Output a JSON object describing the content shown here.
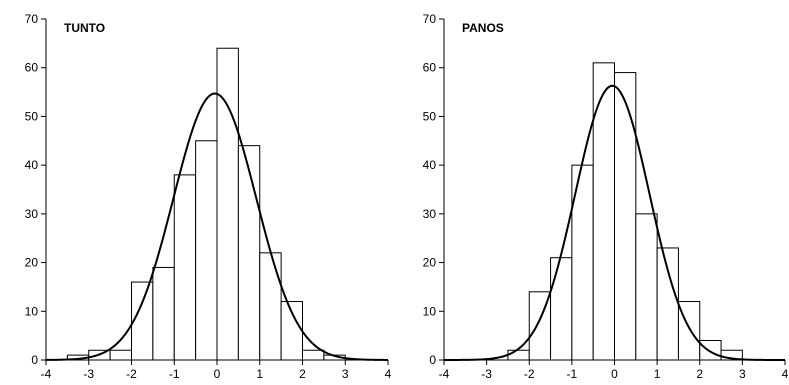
{
  "chart_data": [
    {
      "type": "bar",
      "title": "TUNTO",
      "xlabel": "",
      "ylabel": "",
      "xlim": [
        -4,
        4
      ],
      "ylim": [
        0,
        70
      ],
      "xticks": [
        "-4",
        "-3",
        "-2",
        "-1",
        "0",
        "1",
        "2",
        "3",
        "4"
      ],
      "yticks": [
        "0",
        "10",
        "20",
        "30",
        "40",
        "50",
        "60",
        "70"
      ],
      "bin_width": 0.5,
      "bins": [
        {
          "x0": -3.5,
          "x1": -3.0,
          "value": 1
        },
        {
          "x0": -3.0,
          "x1": -2.5,
          "value": 2
        },
        {
          "x0": -2.5,
          "x1": -2.0,
          "value": 2
        },
        {
          "x0": -2.0,
          "x1": -1.5,
          "value": 16
        },
        {
          "x0": -1.5,
          "x1": -1.0,
          "value": 19
        },
        {
          "x0": -1.0,
          "x1": -0.5,
          "value": 38
        },
        {
          "x0": -0.5,
          "x1": 0.0,
          "value": 45
        },
        {
          "x0": 0.0,
          "x1": 0.5,
          "value": 64
        },
        {
          "x0": 0.5,
          "x1": 1.0,
          "value": 44
        },
        {
          "x0": 1.0,
          "x1": 1.5,
          "value": 22
        },
        {
          "x0": 1.5,
          "x1": 2.0,
          "value": 12
        },
        {
          "x0": 2.0,
          "x1": 2.5,
          "value": 2
        },
        {
          "x0": 2.5,
          "x1": 3.0,
          "value": 1
        }
      ],
      "curve": {
        "type": "normal",
        "mean": -0.05,
        "sd": 0.97,
        "peak": 54.7
      }
    },
    {
      "type": "bar",
      "title": "PANOS",
      "xlabel": "",
      "ylabel": "",
      "xlim": [
        -4,
        4
      ],
      "ylim": [
        0,
        70
      ],
      "xticks": [
        "-4",
        "-3",
        "-2",
        "-1",
        "0",
        "1",
        "2",
        "3",
        "4"
      ],
      "yticks": [
        "0",
        "10",
        "20",
        "30",
        "40",
        "50",
        "60",
        "70"
      ],
      "bin_width": 0.5,
      "bins": [
        {
          "x0": -3.0,
          "x1": -2.5,
          "value": 0
        },
        {
          "x0": -2.5,
          "x1": -2.0,
          "value": 2
        },
        {
          "x0": -2.0,
          "x1": -1.5,
          "value": 14
        },
        {
          "x0": -1.5,
          "x1": -1.0,
          "value": 21
        },
        {
          "x0": -1.0,
          "x1": -0.5,
          "value": 40
        },
        {
          "x0": -0.5,
          "x1": 0.0,
          "value": 61
        },
        {
          "x0": 0.0,
          "x1": 0.5,
          "value": 59
        },
        {
          "x0": 0.5,
          "x1": 1.0,
          "value": 30
        },
        {
          "x0": 1.0,
          "x1": 1.5,
          "value": 23
        },
        {
          "x0": 1.5,
          "x1": 2.0,
          "value": 12
        },
        {
          "x0": 2.0,
          "x1": 2.5,
          "value": 4
        },
        {
          "x0": 2.5,
          "x1": 3.0,
          "value": 2
        }
      ],
      "curve": {
        "type": "normal",
        "mean": -0.05,
        "sd": 0.87,
        "peak": 56.3
      }
    }
  ]
}
